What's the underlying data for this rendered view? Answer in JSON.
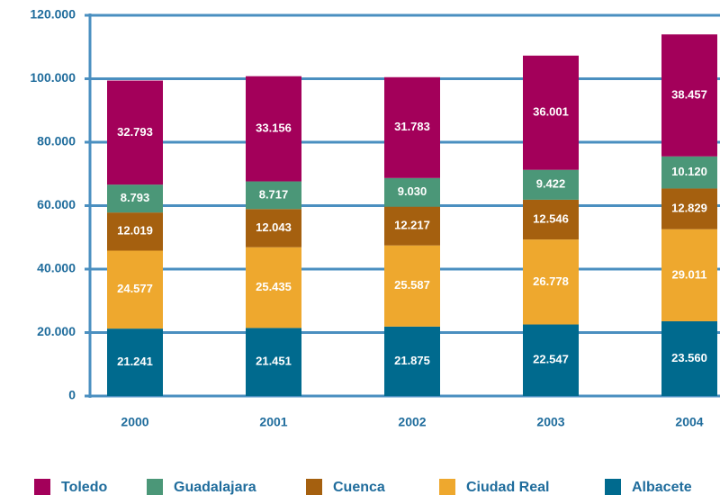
{
  "chart_data": {
    "type": "stacked_bar",
    "categories": [
      "2000",
      "2001",
      "2002",
      "2003",
      "2004"
    ],
    "series": [
      {
        "name": "Albacete",
        "color": "#006a8e",
        "values": [
          21241,
          21451,
          21875,
          22547,
          23560
        ],
        "value_labels": [
          "21.241",
          "21.451",
          "21.875",
          "22.547",
          "23.560"
        ]
      },
      {
        "name": "Ciudad Real",
        "color": "#eea82e",
        "values": [
          24577,
          25435,
          25587,
          26778,
          29011
        ],
        "value_labels": [
          "24.577",
          "25.435",
          "25.587",
          "26.778",
          "29.011"
        ]
      },
      {
        "name": "Cuenca",
        "color": "#a5600f",
        "values": [
          12019,
          12043,
          12217,
          12546,
          12829
        ],
        "value_labels": [
          "12.019",
          "12.043",
          "12.217",
          "12.546",
          "12.829"
        ]
      },
      {
        "name": "Guadalajara",
        "color": "#4b9778",
        "values": [
          8793,
          8717,
          9030,
          9422,
          10120
        ],
        "value_labels": [
          "8.793",
          "8.717",
          "9.030",
          "9.422",
          "10.120"
        ]
      },
      {
        "name": "Toledo",
        "color": "#a3005a",
        "values": [
          32793,
          33156,
          31783,
          36001,
          38457
        ],
        "value_labels": [
          "32.793",
          "33.156",
          "31.783",
          "36.001",
          "38.457"
        ]
      }
    ],
    "ylim": [
      0,
      120000
    ],
    "yticks": [
      0,
      {
        "value": 20000,
        "label": "20.000"
      },
      {
        "value": 40000,
        "label": "40.000"
      },
      {
        "value": 60000,
        "label": "60.000"
      },
      {
        "value": 80000,
        "label": "80.000"
      },
      {
        "value": 100000,
        "label": "100.000"
      },
      {
        "value": 120000,
        "label": "120.000"
      }
    ],
    "grid": true
  }
}
